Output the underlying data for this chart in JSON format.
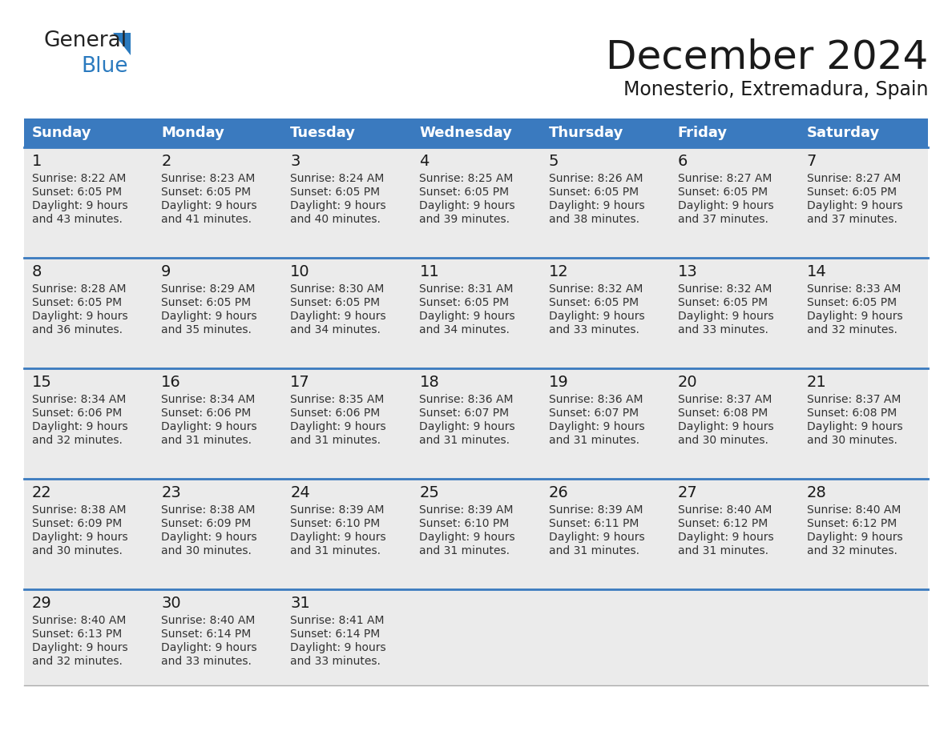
{
  "title": "December 2024",
  "subtitle": "Monesterio, Extremadura, Spain",
  "header_color": "#3a7abf",
  "header_text_color": "#ffffff",
  "cell_bg_color": "#ebebeb",
  "row_separator_color": "#3a7abf",
  "day_headers": [
    "Sunday",
    "Monday",
    "Tuesday",
    "Wednesday",
    "Thursday",
    "Friday",
    "Saturday"
  ],
  "title_fontsize": 36,
  "subtitle_fontsize": 17,
  "header_fontsize": 13,
  "day_num_fontsize": 14,
  "cell_fontsize": 10,
  "logo_general_color": "#222222",
  "logo_blue_color": "#2a7abf",
  "calendar_data": [
    [
      {
        "day": 1,
        "sunrise": "8:22 AM",
        "sunset": "6:05 PM",
        "daylight": "9 hours and 43 minutes"
      },
      {
        "day": 2,
        "sunrise": "8:23 AM",
        "sunset": "6:05 PM",
        "daylight": "9 hours and 41 minutes"
      },
      {
        "day": 3,
        "sunrise": "8:24 AM",
        "sunset": "6:05 PM",
        "daylight": "9 hours and 40 minutes"
      },
      {
        "day": 4,
        "sunrise": "8:25 AM",
        "sunset": "6:05 PM",
        "daylight": "9 hours and 39 minutes"
      },
      {
        "day": 5,
        "sunrise": "8:26 AM",
        "sunset": "6:05 PM",
        "daylight": "9 hours and 38 minutes"
      },
      {
        "day": 6,
        "sunrise": "8:27 AM",
        "sunset": "6:05 PM",
        "daylight": "9 hours and 37 minutes"
      },
      {
        "day": 7,
        "sunrise": "8:27 AM",
        "sunset": "6:05 PM",
        "daylight": "9 hours and 37 minutes"
      }
    ],
    [
      {
        "day": 8,
        "sunrise": "8:28 AM",
        "sunset": "6:05 PM",
        "daylight": "9 hours and 36 minutes"
      },
      {
        "day": 9,
        "sunrise": "8:29 AM",
        "sunset": "6:05 PM",
        "daylight": "9 hours and 35 minutes"
      },
      {
        "day": 10,
        "sunrise": "8:30 AM",
        "sunset": "6:05 PM",
        "daylight": "9 hours and 34 minutes"
      },
      {
        "day": 11,
        "sunrise": "8:31 AM",
        "sunset": "6:05 PM",
        "daylight": "9 hours and 34 minutes"
      },
      {
        "day": 12,
        "sunrise": "8:32 AM",
        "sunset": "6:05 PM",
        "daylight": "9 hours and 33 minutes"
      },
      {
        "day": 13,
        "sunrise": "8:32 AM",
        "sunset": "6:05 PM",
        "daylight": "9 hours and 33 minutes"
      },
      {
        "day": 14,
        "sunrise": "8:33 AM",
        "sunset": "6:05 PM",
        "daylight": "9 hours and 32 minutes"
      }
    ],
    [
      {
        "day": 15,
        "sunrise": "8:34 AM",
        "sunset": "6:06 PM",
        "daylight": "9 hours and 32 minutes"
      },
      {
        "day": 16,
        "sunrise": "8:34 AM",
        "sunset": "6:06 PM",
        "daylight": "9 hours and 31 minutes"
      },
      {
        "day": 17,
        "sunrise": "8:35 AM",
        "sunset": "6:06 PM",
        "daylight": "9 hours and 31 minutes"
      },
      {
        "day": 18,
        "sunrise": "8:36 AM",
        "sunset": "6:07 PM",
        "daylight": "9 hours and 31 minutes"
      },
      {
        "day": 19,
        "sunrise": "8:36 AM",
        "sunset": "6:07 PM",
        "daylight": "9 hours and 31 minutes"
      },
      {
        "day": 20,
        "sunrise": "8:37 AM",
        "sunset": "6:08 PM",
        "daylight": "9 hours and 30 minutes"
      },
      {
        "day": 21,
        "sunrise": "8:37 AM",
        "sunset": "6:08 PM",
        "daylight": "9 hours and 30 minutes"
      }
    ],
    [
      {
        "day": 22,
        "sunrise": "8:38 AM",
        "sunset": "6:09 PM",
        "daylight": "9 hours and 30 minutes"
      },
      {
        "day": 23,
        "sunrise": "8:38 AM",
        "sunset": "6:09 PM",
        "daylight": "9 hours and 30 minutes"
      },
      {
        "day": 24,
        "sunrise": "8:39 AM",
        "sunset": "6:10 PM",
        "daylight": "9 hours and 31 minutes"
      },
      {
        "day": 25,
        "sunrise": "8:39 AM",
        "sunset": "6:10 PM",
        "daylight": "9 hours and 31 minutes"
      },
      {
        "day": 26,
        "sunrise": "8:39 AM",
        "sunset": "6:11 PM",
        "daylight": "9 hours and 31 minutes"
      },
      {
        "day": 27,
        "sunrise": "8:40 AM",
        "sunset": "6:12 PM",
        "daylight": "9 hours and 31 minutes"
      },
      {
        "day": 28,
        "sunrise": "8:40 AM",
        "sunset": "6:12 PM",
        "daylight": "9 hours and 32 minutes"
      }
    ],
    [
      {
        "day": 29,
        "sunrise": "8:40 AM",
        "sunset": "6:13 PM",
        "daylight": "9 hours and 32 minutes"
      },
      {
        "day": 30,
        "sunrise": "8:40 AM",
        "sunset": "6:14 PM",
        "daylight": "9 hours and 33 minutes"
      },
      {
        "day": 31,
        "sunrise": "8:41 AM",
        "sunset": "6:14 PM",
        "daylight": "9 hours and 33 minutes"
      },
      null,
      null,
      null,
      null
    ]
  ]
}
